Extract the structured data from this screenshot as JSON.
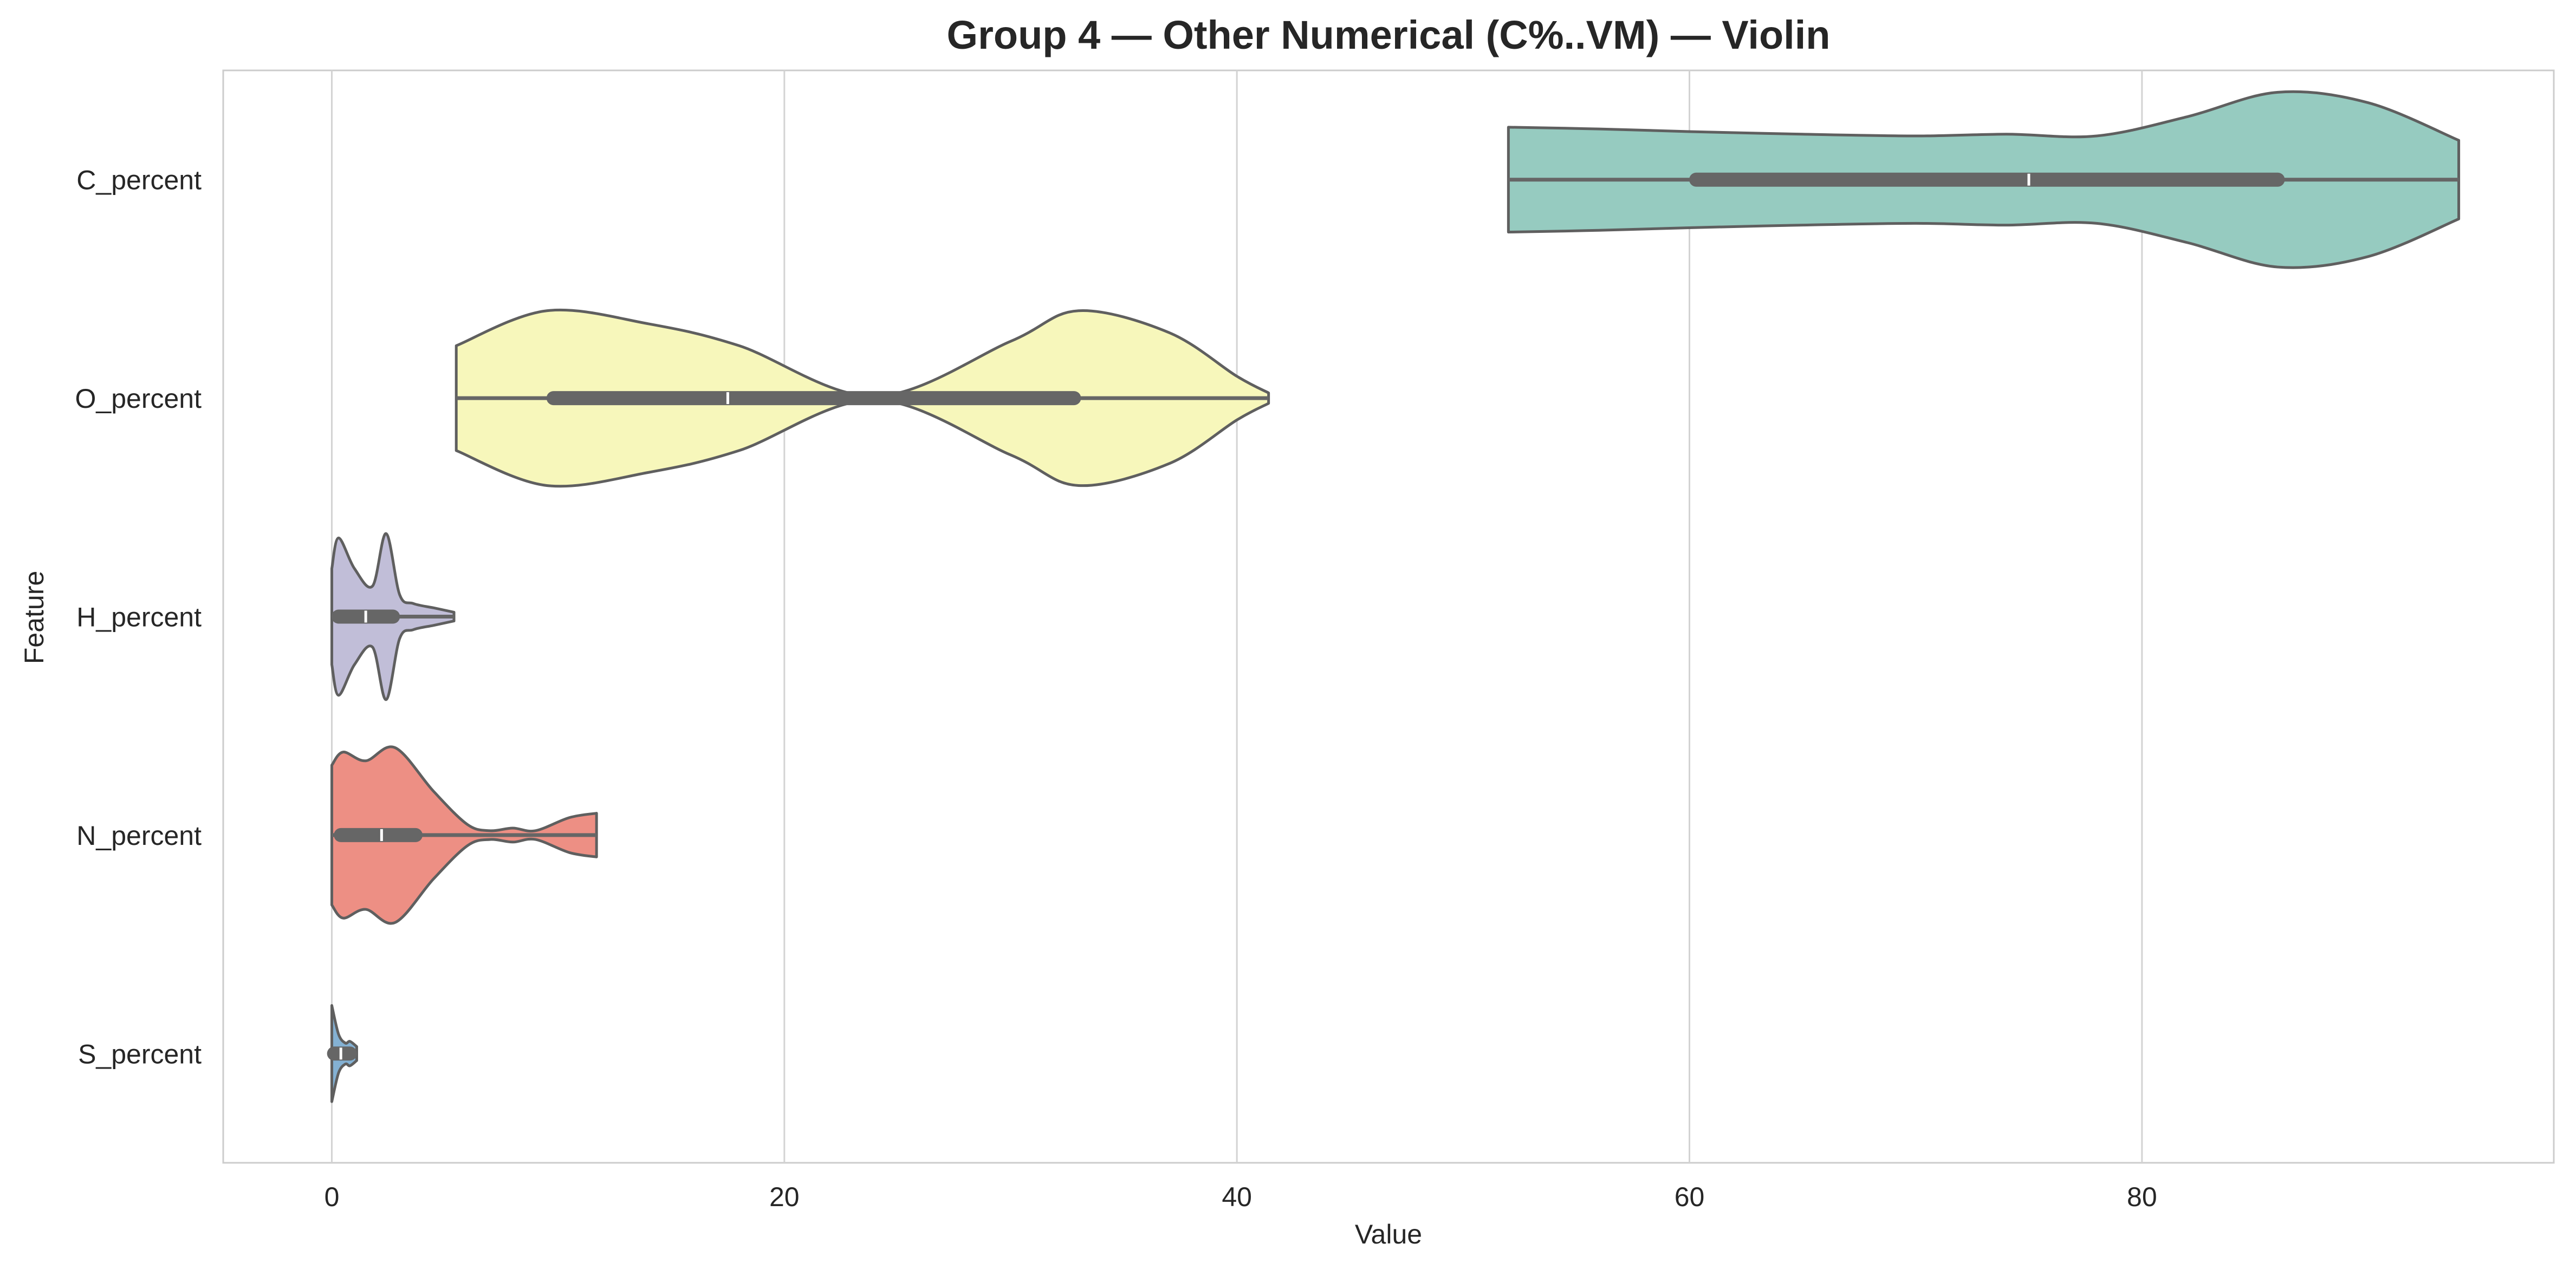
{
  "chart_data": {
    "type": "violin",
    "orientation": "horizontal",
    "title": "Group 4 — Other Numerical (C%..VM) — Violin",
    "xlabel": "Value",
    "ylabel": "Feature",
    "xlim": [
      -4.8,
      98.2
    ],
    "xticks": [
      0,
      20,
      40,
      60,
      80
    ],
    "xgrid": true,
    "categories": [
      "C_percent",
      "O_percent",
      "H_percent",
      "N_percent",
      "S_percent"
    ],
    "series": [
      {
        "category": "C_percent",
        "color": "#96cbc0",
        "min": 52,
        "q1": 60.3,
        "median": 75,
        "q3": 86,
        "max": 94,
        "density_profile": [
          [
            52,
            0.6
          ],
          [
            56,
            0.58
          ],
          [
            60,
            0.55
          ],
          [
            65,
            0.52
          ],
          [
            70,
            0.5
          ],
          [
            74,
            0.52
          ],
          [
            78,
            0.5
          ],
          [
            82,
            0.72
          ],
          [
            86,
            1.0
          ],
          [
            90,
            0.88
          ],
          [
            94,
            0.45
          ]
        ]
      },
      {
        "category": "O_percent",
        "color": "#f7f7bb",
        "min": 5.5,
        "q1": 9.8,
        "median": 17.5,
        "q3": 32.8,
        "max": 41.4,
        "density_profile": [
          [
            5.5,
            0.6
          ],
          [
            9.5,
            1.0
          ],
          [
            14,
            0.85
          ],
          [
            18,
            0.6
          ],
          [
            24,
            0.02
          ],
          [
            30,
            0.65
          ],
          [
            33,
            1.0
          ],
          [
            37,
            0.75
          ],
          [
            40,
            0.25
          ],
          [
            41.4,
            0.06
          ]
        ]
      },
      {
        "category": "H_percent",
        "color": "#c1bed8",
        "min": 0,
        "q1": 0.3,
        "median": 1.5,
        "q3": 2.7,
        "max": 5.4,
        "density_profile": [
          [
            0,
            0.55
          ],
          [
            0.3,
            0.9
          ],
          [
            1,
            0.55
          ],
          [
            1.8,
            0.35
          ],
          [
            2.4,
            0.95
          ],
          [
            3,
            0.25
          ],
          [
            3.6,
            0.15
          ],
          [
            4.5,
            0.1
          ],
          [
            5.4,
            0.05
          ]
        ]
      },
      {
        "category": "N_percent",
        "color": "#ed8f84",
        "min": 0,
        "q1": 0.4,
        "median": 2.2,
        "q3": 3.7,
        "max": 11.7,
        "density_profile": [
          [
            0,
            0.8
          ],
          [
            0.5,
            0.95
          ],
          [
            1.5,
            0.85
          ],
          [
            2.8,
            1.0
          ],
          [
            4.5,
            0.5
          ],
          [
            6,
            0.12
          ],
          [
            7,
            0.05
          ],
          [
            8,
            0.08
          ],
          [
            9,
            0.05
          ],
          [
            10.5,
            0.2
          ],
          [
            11.7,
            0.25
          ]
        ]
      },
      {
        "category": "S_percent",
        "color": "#84b1d3",
        "min": 0,
        "q1": 0.1,
        "median": 0.4,
        "q3": 0.8,
        "max": 1.1,
        "density_profile": [
          [
            0,
            0.55
          ],
          [
            0.3,
            0.22
          ],
          [
            0.6,
            0.12
          ],
          [
            0.8,
            0.14
          ],
          [
            1.1,
            0.08
          ]
        ]
      }
    ]
  }
}
